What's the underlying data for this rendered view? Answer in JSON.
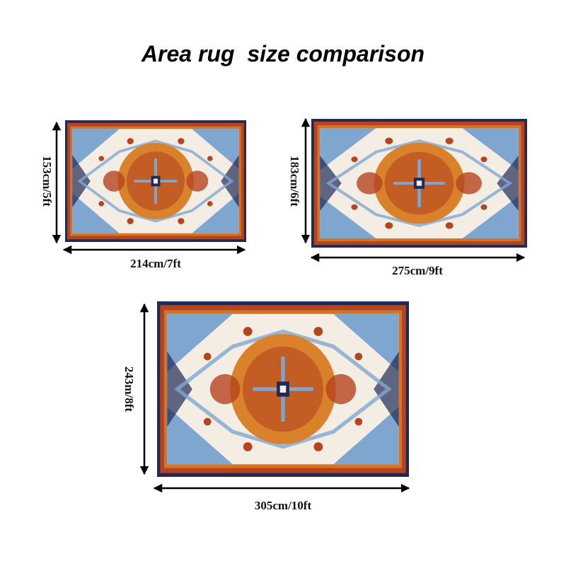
{
  "title": "Area rug  size comparison",
  "colors": {
    "navy": "#1f2a55",
    "rust": "#b5441f",
    "orange": "#d9822b",
    "cream": "#f3ede3",
    "blue": "#7fa6cf"
  },
  "rugs": [
    {
      "width_label": "214cm/7ft",
      "height_label": "153cm/5ft"
    },
    {
      "width_label": "275cm/9ft",
      "height_label": "183cm/6ft"
    },
    {
      "width_label": "305cm/10ft",
      "height_label": "243m/8ft"
    }
  ]
}
